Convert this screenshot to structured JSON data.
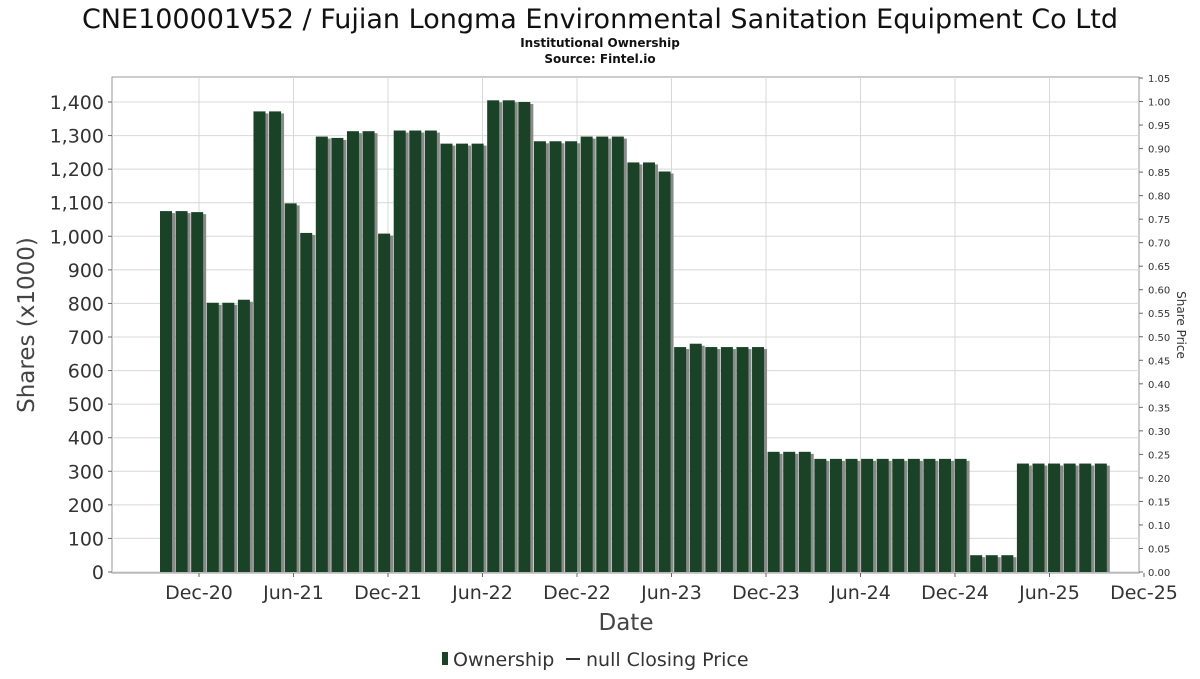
{
  "colors": {
    "bar": "#1a4226",
    "bar_shadow": "#8a8a8a",
    "grid": "#d8d8d8",
    "plot_border": "#999999"
  },
  "chart_data": {
    "type": "bar",
    "title": "CNE100001V52 / Fujian Longma Environmental Sanitation Equipment Co Ltd",
    "subtitle_1": "Institutional Ownership",
    "subtitle_2": "Source: Fintel.io",
    "xlabel": "Date",
    "ylabel": "Shares (x1000)",
    "y2label": "Share Price",
    "ylim": [
      0,
      1400
    ],
    "y2lim": [
      0.0,
      1.05
    ],
    "y_ticks": [
      "0",
      "100",
      "200",
      "300",
      "400",
      "500",
      "600",
      "700",
      "800",
      "900",
      "1,000",
      "1,100",
      "1,200",
      "1,300",
      "1,400"
    ],
    "y2_ticks": [
      "0.00",
      "0.05",
      "0.10",
      "0.15",
      "0.20",
      "0.25",
      "0.30",
      "0.35",
      "0.40",
      "0.45",
      "0.50",
      "0.55",
      "0.60",
      "0.65",
      "0.70",
      "0.75",
      "0.80",
      "0.85",
      "0.90",
      "0.95",
      "1.00",
      "1.05"
    ],
    "x_ticks": [
      "Dec-20",
      "Jun-21",
      "Dec-21",
      "Jun-22",
      "Dec-22",
      "Jun-23",
      "Dec-23",
      "Jun-24",
      "Dec-24",
      "Jun-25",
      "Dec-25"
    ],
    "grid": true,
    "legend_position": "bottom",
    "series": [
      {
        "name": "Ownership",
        "values": [
          1075,
          1075,
          1072,
          802,
          802,
          811,
          1372,
          1372,
          1098,
          1010,
          1297,
          1293,
          1313,
          1313,
          1008,
          1315,
          1315,
          1315,
          1276,
          1276,
          1276,
          1405,
          1405,
          1400,
          1283,
          1283,
          1283,
          1297,
          1297,
          1297,
          1220,
          1220,
          1193,
          670,
          680,
          670,
          670,
          670,
          670,
          358,
          358,
          358,
          337,
          337,
          337,
          337,
          337,
          337,
          337,
          337,
          337,
          337,
          50,
          50,
          50,
          323,
          323,
          323,
          323,
          323,
          323
        ]
      },
      {
        "name": "null Closing Price",
        "values": []
      }
    ],
    "legend": [
      "Ownership",
      "null Closing Price"
    ]
  }
}
